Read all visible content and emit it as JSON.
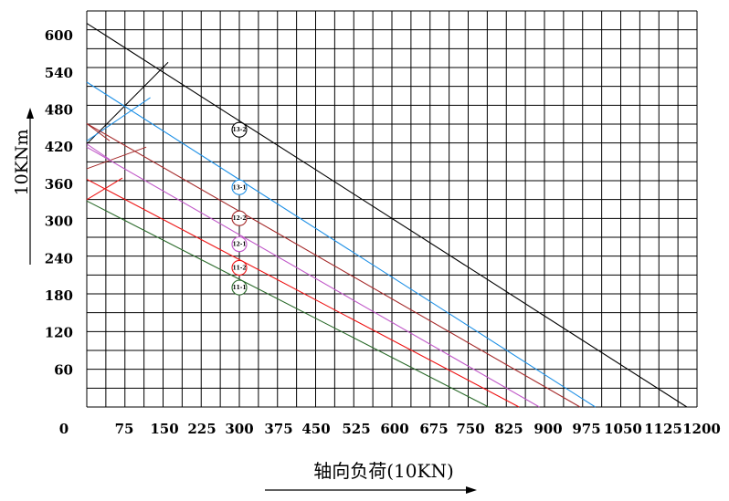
{
  "chart_data": {
    "type": "line",
    "title": "",
    "xlabel": "轴向负荷(10KN)",
    "ylabel": "10KNm",
    "xlim": [
      0,
      1200
    ],
    "ylim": [
      0,
      640
    ],
    "x_ticks": [
      "0",
      "75",
      "150",
      "225",
      "300",
      "375",
      "450",
      "525",
      "600",
      "675",
      "750",
      "825",
      "900",
      "975",
      "1050",
      "1125",
      "1200"
    ],
    "y_ticks": [
      "60",
      "120",
      "180",
      "240",
      "300",
      "360",
      "420",
      "480",
      "540",
      "600"
    ],
    "grid": true,
    "legend": "none",
    "series": [
      {
        "id": "black",
        "color": "#000000",
        "x": [
          0,
          1180
        ],
        "y": [
          620,
          0
        ]
      },
      {
        "id": "blue",
        "color": "#1e90e6",
        "x": [
          0,
          1000
        ],
        "y": [
          525,
          0
        ]
      },
      {
        "id": "darkred",
        "color": "#a52a2a",
        "x": [
          0,
          970
        ],
        "y": [
          458,
          0
        ]
      },
      {
        "id": "purple",
        "color": "#c058c8",
        "x": [
          0,
          890
        ],
        "y": [
          420,
          0
        ]
      },
      {
        "id": "red",
        "color": "#ee1111",
        "x": [
          0,
          850
        ],
        "y": [
          368,
          0
        ]
      },
      {
        "id": "green",
        "color": "#2a6a2a",
        "x": [
          0,
          790
        ],
        "y": [
          333,
          0
        ]
      }
    ],
    "auxiliary_lines": [
      {
        "color": "#000000",
        "x": [
          0,
          160
        ],
        "y": [
          425,
          557
        ]
      },
      {
        "color": "#1e90e6",
        "x": [
          0,
          125
        ],
        "y": [
          430,
          500
        ]
      },
      {
        "color": "#a52a2a",
        "x": [
          0,
          117
        ],
        "y": [
          385,
          420
        ]
      },
      {
        "color": "#a52a2a",
        "x": [
          0,
          45
        ],
        "y": [
          458,
          430
        ]
      },
      {
        "color": "#ee1111",
        "x": [
          0,
          70
        ],
        "y": [
          335,
          370
        ]
      },
      {
        "color": "#c058c8",
        "x": [
          0,
          45
        ],
        "y": [
          425,
          400
        ]
      }
    ],
    "markers": [
      {
        "label": "13-2",
        "x": 300,
        "y": 448,
        "color": "#000000"
      },
      {
        "label": "13-1",
        "x": 300,
        "y": 355,
        "color": "#1e90e6"
      },
      {
        "label": "12-2",
        "x": 300,
        "y": 305,
        "color": "#a52a2a"
      },
      {
        "label": "12-1",
        "x": 300,
        "y": 263,
        "color": "#c058c8"
      },
      {
        "label": "11-2",
        "x": 300,
        "y": 225,
        "color": "#ee1111"
      },
      {
        "label": "11-1",
        "x": 300,
        "y": 193,
        "color": "#2a6a2a"
      }
    ]
  }
}
